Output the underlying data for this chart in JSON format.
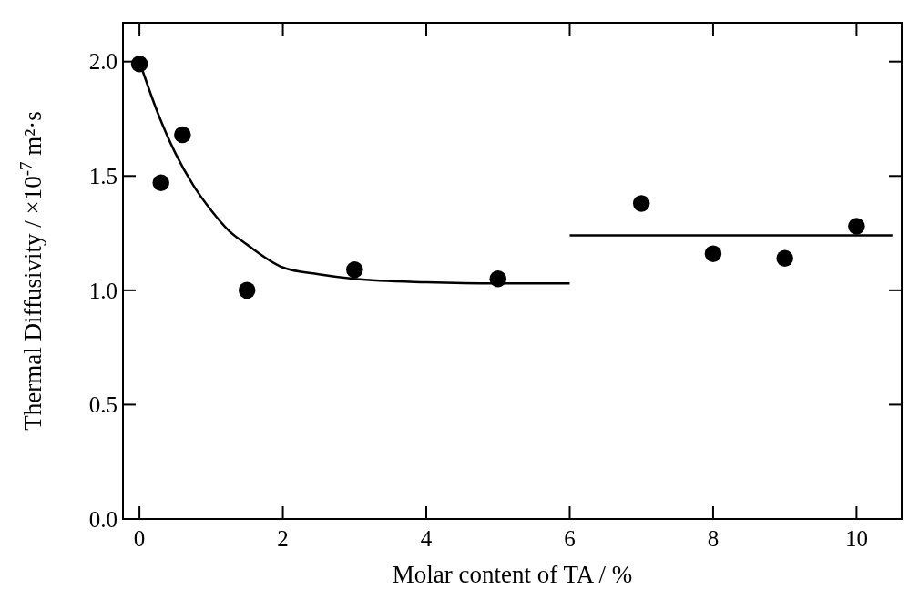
{
  "chart_data": {
    "type": "scatter",
    "xlabel": "Molar content of TA / %",
    "ylabel": "Thermal Diffusivity / ×10$^{-7}$ m²·s",
    "xlim": [
      -0.23,
      10.63
    ],
    "ylim": [
      0,
      2.17
    ],
    "xticks": [
      0,
      2,
      4,
      6,
      8,
      10
    ],
    "yticks": [
      {
        "value": 0,
        "label": "0.0"
      },
      {
        "value": 0.5,
        "label": "0.5"
      },
      {
        "value": 1,
        "label": "1.0"
      },
      {
        "value": 1.5,
        "label": "1.5"
      },
      {
        "value": 2,
        "label": "2.0"
      }
    ],
    "grid": false,
    "series": [
      {
        "marker": "circle",
        "color": "#000000",
        "x": [
          0,
          0.3,
          0.6,
          1.5,
          3,
          5,
          7,
          8,
          9,
          10
        ],
        "values": [
          1.99,
          1.47,
          1.68,
          1.0,
          1.09,
          1.05,
          1.38,
          1.16,
          1.14,
          1.28
        ]
      },
      {
        "type": "line",
        "color": "#000000",
        "x": [
          0,
          0.25,
          0.5,
          0.75,
          1,
          1.25,
          1.5,
          2,
          2.5,
          3,
          4,
          5,
          6
        ],
        "values": [
          2.0,
          1.78,
          1.6,
          1.46,
          1.35,
          1.26,
          1.2,
          1.1,
          1.07,
          1.05,
          1.035,
          1.03,
          1.03
        ]
      },
      {
        "type": "line",
        "color": "#000000",
        "x": [
          6,
          10.5
        ],
        "values": [
          1.24,
          1.24
        ]
      }
    ]
  }
}
